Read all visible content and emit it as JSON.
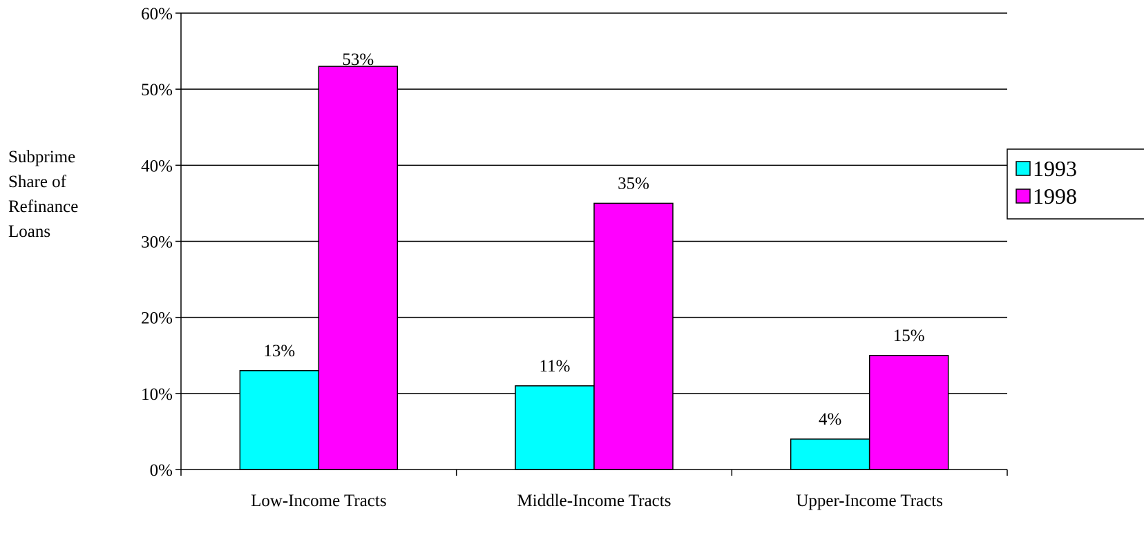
{
  "chart_data": {
    "type": "bar",
    "categories": [
      "Low-Income Tracts",
      "Middle-Income Tracts",
      "Upper-Income Tracts"
    ],
    "series": [
      {
        "name": "1993",
        "values": [
          13,
          11,
          4
        ],
        "labels": [
          "13%",
          "11%",
          "4%"
        ],
        "color": "#00FFFF"
      },
      {
        "name": "1998",
        "values": [
          53,
          35,
          15
        ],
        "labels": [
          "53%",
          "35%",
          "15%"
        ],
        "color": "#FF00FF"
      }
    ],
    "ylabel_lines": [
      "Subprime",
      "Share of",
      "Refinance",
      "Loans"
    ],
    "yticks": [
      "0%",
      "10%",
      "20%",
      "30%",
      "40%",
      "50%",
      "60%"
    ],
    "ylim": [
      0,
      60
    ],
    "grid": true,
    "legend_position": "right"
  }
}
